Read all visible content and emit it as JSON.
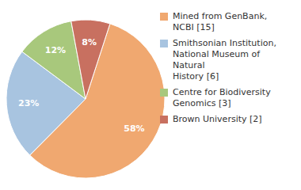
{
  "chart_data": {
    "type": "pie",
    "categories": [
      "Mined from GenBank, NCBI [15]",
      "Smithsonian Institution,\nNational Museum of Natural\nHistory [6]",
      "Centre for Biodiversity\nGenomics [3]",
      "Brown University [2]"
    ],
    "values": [
      58,
      23,
      12,
      8
    ],
    "value_labels": [
      "58%",
      "23%",
      "12%",
      "8%"
    ],
    "colors": [
      "#F0A870",
      "#A8C4E0",
      "#A8C87C",
      "#C87060"
    ],
    "data_labels": true,
    "legend": "right"
  }
}
